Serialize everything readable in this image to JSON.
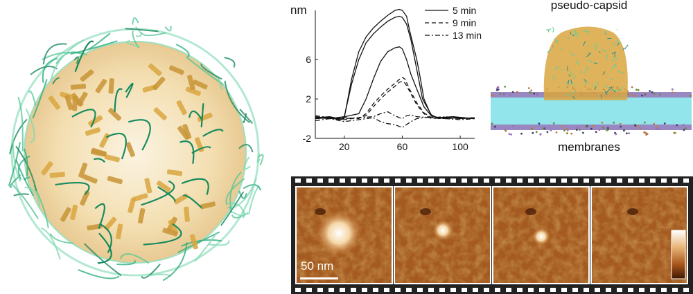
{
  "capsid_figure": {
    "icon": "protein-capsid-ribbon-illustration"
  },
  "chart_data": {
    "type": "line",
    "ylabel": "nm",
    "xlabel": "",
    "xlim": [
      0,
      110
    ],
    "ylim": [
      -2,
      11
    ],
    "xticks": [
      20,
      60,
      100
    ],
    "yticks": [
      -2,
      2,
      6
    ],
    "legend_position": "top-right",
    "series": [
      {
        "name": "5 min",
        "style": "solid",
        "x": [
          0,
          10,
          16,
          18,
          20,
          25,
          30,
          35,
          40,
          45,
          50,
          55,
          58,
          60,
          63,
          65,
          70,
          72,
          75,
          80,
          85,
          90,
          95,
          100,
          110
        ],
        "y": [
          0.1,
          0.2,
          0,
          -0.1,
          0.1,
          4,
          6.8,
          8.3,
          9.2,
          9.9,
          10.5,
          11.0,
          11.1,
          11.0,
          10.4,
          9.0,
          6.0,
          4.5,
          2.0,
          0.3,
          0.1,
          0,
          0.2,
          0,
          0.1
        ]
      },
      {
        "name": "5 min",
        "style": "solid",
        "x": [
          0,
          10,
          16,
          18,
          20,
          25,
          30,
          35,
          40,
          45,
          50,
          55,
          58,
          60,
          63,
          66,
          70,
          74,
          80,
          85,
          90,
          95,
          100,
          110
        ],
        "y": [
          0,
          0.1,
          -0.1,
          0,
          0.2,
          3.5,
          6.0,
          7.7,
          8.6,
          9.3,
          9.9,
          10.3,
          10.4,
          10.3,
          9.6,
          8.0,
          5.0,
          2.0,
          0.4,
          0,
          0.1,
          0.2,
          0.1,
          0
        ]
      },
      {
        "name": "5 min",
        "style": "solid",
        "x": [
          0,
          10,
          20,
          30,
          35,
          40,
          45,
          50,
          55,
          58,
          60,
          63,
          66,
          70,
          75,
          80,
          85,
          95,
          110
        ],
        "y": [
          0.1,
          0,
          0.2,
          0.5,
          2.0,
          4.0,
          5.8,
          6.8,
          7.2,
          7.3,
          7.1,
          6.0,
          4.5,
          3.0,
          1.2,
          0.3,
          0.1,
          0.2,
          0
        ]
      },
      {
        "name": "9 min",
        "style": "dashed",
        "x": [
          0,
          10,
          20,
          30,
          35,
          40,
          45,
          50,
          55,
          58,
          60,
          62,
          65,
          70,
          75,
          80,
          90,
          100,
          110
        ],
        "y": [
          0.2,
          0,
          0.1,
          0,
          0.5,
          1.5,
          2.3,
          3.0,
          3.6,
          4.0,
          4.2,
          4.0,
          3.0,
          1.6,
          0.6,
          0.1,
          0,
          0.1,
          0
        ]
      },
      {
        "name": "9 min",
        "style": "dashed",
        "x": [
          0,
          10,
          20,
          30,
          35,
          40,
          45,
          50,
          55,
          58,
          60,
          62,
          65,
          70,
          75,
          80,
          90,
          100,
          110
        ],
        "y": [
          0,
          0.1,
          -0.1,
          0.1,
          0.3,
          1.2,
          2.0,
          2.7,
          3.3,
          3.7,
          3.8,
          3.6,
          2.8,
          1.4,
          0.5,
          0,
          0.1,
          0,
          0.1
        ]
      },
      {
        "name": "13 min",
        "style": "dashdot",
        "x": [
          0,
          10,
          20,
          30,
          40,
          45,
          50,
          55,
          58,
          60,
          63,
          66,
          70,
          80,
          90,
          100,
          110
        ],
        "y": [
          -0.2,
          0,
          -0.3,
          -0.1,
          0.1,
          -0.3,
          -0.5,
          -0.6,
          -0.8,
          -0.9,
          -0.6,
          -0.3,
          0,
          0.2,
          0,
          -0.1,
          0
        ]
      },
      {
        "name": "13 min",
        "style": "dashdot",
        "x": [
          0,
          10,
          20,
          30,
          40,
          45,
          50,
          55,
          58,
          60,
          63,
          66,
          70,
          80,
          90,
          100,
          110
        ],
        "y": [
          0.3,
          0.1,
          0,
          0.1,
          0.2,
          0.5,
          0.7,
          0.3,
          0.1,
          0,
          0.3,
          0.4,
          0.2,
          0.1,
          0.2,
          0,
          0.1
        ]
      }
    ],
    "legend": [
      "5 min",
      "9 min",
      "13 min"
    ]
  },
  "simulation": {
    "title": "pseudo-capsid",
    "caption": "membranes",
    "colors": {
      "capsid": "#5fcf9a",
      "capsid_core": "#d9a640",
      "membrane_core": "#7fe0e8",
      "membrane_head": "#9a6fb5"
    }
  },
  "afm": {
    "frames": 4,
    "scalebar_label": "50 nm",
    "particle_sizes": [
      1.0,
      0.45,
      0.4,
      0
    ],
    "colorbar_colors": [
      "#ffffff",
      "#e8b577",
      "#a9561a",
      "#3d1704"
    ]
  }
}
